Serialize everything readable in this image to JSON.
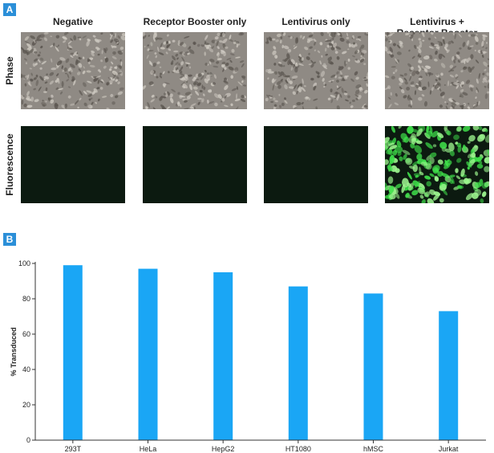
{
  "panel_a": {
    "badge": "A",
    "columns": [
      "Negative",
      "Receptor Booster only",
      "Lentivirus only",
      "Lentivirus +\nReceptor Booster"
    ],
    "rows": [
      "Phase",
      "Fluorescence"
    ],
    "fluorescence_positive": [
      false,
      false,
      false,
      true
    ],
    "colors": {
      "phase_base": "#8f8a84",
      "dark_field": "#0c1a10",
      "gfp": "#3fe04a"
    }
  },
  "panel_b": {
    "badge": "B"
  },
  "chart_data": {
    "type": "bar",
    "categories": [
      "293T",
      "HeLa",
      "HepG2",
      "HT1080",
      "hMSC",
      "Jurkat"
    ],
    "values": [
      99,
      97,
      95,
      87,
      83,
      73
    ],
    "title": "",
    "xlabel": "",
    "ylabel": "% Transduced",
    "ylim": [
      0,
      100
    ],
    "yticks": [
      0,
      20,
      40,
      60,
      80,
      100
    ],
    "grid": false,
    "bar_color": "#1aa6f5"
  }
}
